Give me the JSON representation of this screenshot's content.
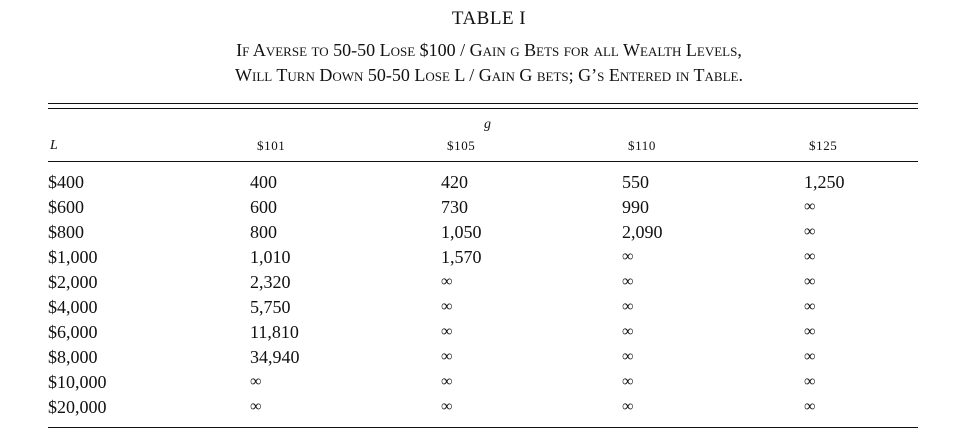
{
  "title": "TABLE I",
  "caption_line1": "If Averse to 50-50 Lose $100 / Gain g Bets for all Wealth Levels,",
  "caption_line2": "Will Turn Down 50-50 Lose L / Gain G bets; G’s Entered in Table.",
  "header": {
    "row_label": "L",
    "group_label": "g",
    "columns": [
      "$101",
      "$105",
      "$110",
      "$125"
    ]
  },
  "rows": [
    {
      "L": "$400",
      "values": [
        "400",
        "420",
        "550",
        "1,250"
      ]
    },
    {
      "L": "$600",
      "values": [
        "600",
        "730",
        "990",
        "∞"
      ]
    },
    {
      "L": "$800",
      "values": [
        "800",
        "1,050",
        "2,090",
        "∞"
      ]
    },
    {
      "L": "$1,000",
      "values": [
        "1,010",
        "1,570",
        "∞",
        "∞"
      ]
    },
    {
      "L": "$2,000",
      "values": [
        "2,320",
        "∞",
        "∞",
        "∞"
      ]
    },
    {
      "L": "$4,000",
      "values": [
        "5,750",
        "∞",
        "∞",
        "∞"
      ]
    },
    {
      "L": "$6,000",
      "values": [
        "11,810",
        "∞",
        "∞",
        "∞"
      ]
    },
    {
      "L": "$8,000",
      "values": [
        "34,940",
        "∞",
        "∞",
        "∞"
      ]
    },
    {
      "L": "$10,000",
      "values": [
        "∞",
        "∞",
        "∞",
        "∞"
      ]
    },
    {
      "L": "$20,000",
      "values": [
        "∞",
        "∞",
        "∞",
        "∞"
      ]
    }
  ]
}
